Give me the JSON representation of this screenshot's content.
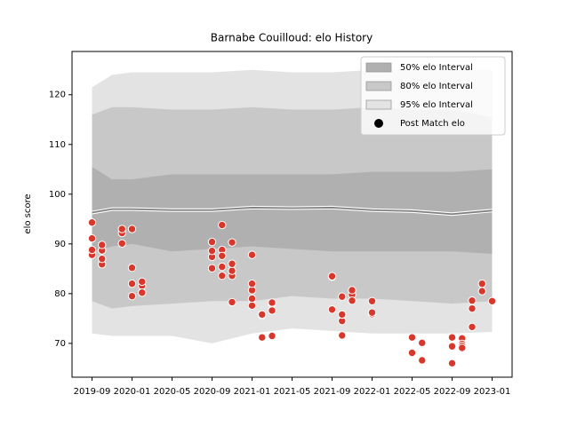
{
  "chart_data": {
    "type": "band",
    "title": "Barnabe Couilloud: elo History",
    "ylabel": "elo score",
    "xlim": [
      "2019-07",
      "2023-03"
    ],
    "xticks": [
      "2019-09",
      "2020-01",
      "2020-05",
      "2020-09",
      "2021-01",
      "2021-05",
      "2021-09",
      "2022-01",
      "2022-05",
      "2022-09",
      "2023-01"
    ],
    "ylim": [
      63.2,
      128.7
    ],
    "yticks": [
      70,
      80,
      90,
      100,
      110,
      120
    ],
    "legend": "upper right",
    "x": [
      "2019-09",
      "2019-11",
      "2020-01",
      "2020-05",
      "2020-09",
      "2021-01",
      "2021-05",
      "2021-09",
      "2022-01",
      "2022-05",
      "2022-09",
      "2023-01"
    ],
    "series": [
      {
        "name": "50% elo Interval",
        "type": "band",
        "color": "#b0b0b0",
        "upper": [
          105.5,
          103,
          103,
          104,
          104,
          104,
          104,
          104,
          104.5,
          104.5,
          104.5,
          105
        ],
        "lower": [
          88.5,
          89.5,
          90,
          88.5,
          89,
          89.5,
          89,
          88.5,
          88.5,
          88.5,
          88.5,
          88
        ]
      },
      {
        "name": "80% elo Interval",
        "type": "band",
        "color": "#c8c8c8",
        "upper": [
          116,
          117.5,
          117.5,
          117,
          117,
          117.5,
          117,
          117,
          117.5,
          117,
          117,
          115.5
        ],
        "lower": [
          78.5,
          77,
          77.5,
          78,
          78.5,
          78.5,
          79.5,
          79,
          79,
          78.5,
          78,
          78.5
        ]
      },
      {
        "name": "95% elo Interval",
        "type": "band",
        "color": "#e3e3e3",
        "upper": [
          121.5,
          124,
          124.5,
          124.5,
          124.5,
          125,
          124.5,
          124.5,
          125,
          125,
          125,
          125
        ],
        "lower": [
          72,
          71.5,
          71.5,
          71.5,
          70,
          72,
          73,
          72.5,
          72,
          72,
          72,
          72.3
        ]
      },
      {
        "type": "line",
        "color": "#808080",
        "values": [
          96.3,
          97,
          97,
          96.8,
          96.8,
          97.3,
          97.2,
          97.3,
          96.8,
          96.6,
          96,
          96.7
        ]
      },
      {
        "name": "Post Match elo",
        "type": "scatter",
        "color": "#d9372b",
        "x": [
          "2019-09",
          "2019-09",
          "2019-09",
          "2019-09",
          "2019-10",
          "2019-10",
          "2019-10",
          "2019-10",
          "2019-12",
          "2019-12",
          "2019-12",
          "2020-01",
          "2020-01",
          "2020-01",
          "2020-01",
          "2020-02",
          "2020-02",
          "2020-02",
          "2020-02",
          "2020-09",
          "2020-09",
          "2020-09",
          "2020-09",
          "2020-10",
          "2020-10",
          "2020-10",
          "2020-10",
          "2020-10",
          "2020-11",
          "2020-11",
          "2020-11",
          "2020-11",
          "2020-11",
          "2021-01",
          "2021-01",
          "2021-01",
          "2021-01",
          "2021-01",
          "2021-02",
          "2021-02",
          "2021-02",
          "2021-03",
          "2021-03",
          "2021-03",
          "2021-03",
          "2021-09",
          "2021-09",
          "2021-09",
          "2021-10",
          "2021-10",
          "2021-10",
          "2021-10",
          "2021-10",
          "2021-11",
          "2021-11",
          "2021-11",
          "2022-01",
          "2022-01",
          "2022-01",
          "2022-05",
          "2022-05",
          "2022-06",
          "2022-06",
          "2022-09",
          "2022-09",
          "2022-09",
          "2022-10",
          "2022-10",
          "2022-10",
          "2022-10",
          "2022-10",
          "2022-10",
          "2022-11",
          "2022-11",
          "2022-11",
          "2022-12",
          "2022-12",
          "2023-01"
        ],
        "values": [
          94.3,
          91.1,
          87.8,
          88.8,
          85.9,
          87.0,
          88.7,
          89.8,
          92.2,
          93.0,
          90.1,
          93.0,
          85.2,
          79.5,
          82.0,
          81.6,
          80.2,
          82.4,
          80.2,
          87.4,
          85.1,
          88.6,
          90.4,
          88.8,
          93.8,
          87.6,
          85.4,
          83.6,
          83.6,
          78.3,
          90.3,
          84.6,
          86.0,
          87.8,
          80.7,
          82.0,
          77.6,
          79.0,
          75.6,
          71.2,
          75.8,
          78.0,
          71.5,
          76.6,
          78.2,
          83.4,
          76.8,
          83.5,
          79.4,
          74.5,
          71.6,
          75.8,
          75.8,
          79.8,
          80.7,
          78.6,
          75.9,
          78.5,
          76.2,
          71.2,
          68.1,
          70.1,
          66.6,
          69.4,
          66.0,
          71.2,
          69.3,
          71.0,
          68.9,
          69.9,
          69.5,
          69.1,
          73.3,
          77.0,
          78.6,
          82.0,
          80.5,
          78.5
        ]
      }
    ]
  }
}
